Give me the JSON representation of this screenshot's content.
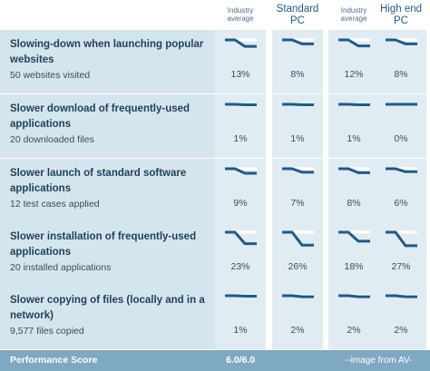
{
  "header": {
    "columns": [
      "Industry average",
      "Standard PC",
      "Industry average",
      "High end PC"
    ]
  },
  "rows": [
    {
      "title": "Slowing-down when launching popular websites",
      "subtitle": "50 websites visited",
      "values": [
        "13%",
        "8%",
        "12%",
        "8%"
      ],
      "slowdown": [
        13,
        8,
        12,
        8
      ]
    },
    {
      "title": "Slower download of frequently-used applications",
      "subtitle": "20 downloaded files",
      "values": [
        "1%",
        "1%",
        "1%",
        "0%"
      ],
      "slowdown": [
        1,
        1,
        1,
        0
      ]
    },
    {
      "title": "Slower launch of standard software applications",
      "subtitle": "12 test cases applied",
      "values": [
        "9%",
        "7%",
        "8%",
        "6%"
      ],
      "slowdown": [
        9,
        7,
        8,
        6
      ]
    },
    {
      "title": "Slower installation of frequently-used applications",
      "subtitle": "20 installed applications",
      "values": [
        "23%",
        "26%",
        "18%",
        "27%"
      ],
      "slowdown": [
        23,
        26,
        18,
        27
      ]
    },
    {
      "title": "Slower copying of files (locally and in a network)",
      "subtitle": "9,577 files copied",
      "values": [
        "1%",
        "2%",
        "2%",
        "2%"
      ],
      "slowdown": [
        1,
        2,
        2,
        2
      ]
    }
  ],
  "footer": {
    "label": "Performance Score",
    "score": "6.0/6.0",
    "credit": "--image from AV-"
  },
  "colors": {
    "line": "#1e5a8c",
    "label_bg": "#d5e5ee",
    "cell_bg": "#e1ecf2",
    "footer_bg": "#7fa8c2"
  }
}
